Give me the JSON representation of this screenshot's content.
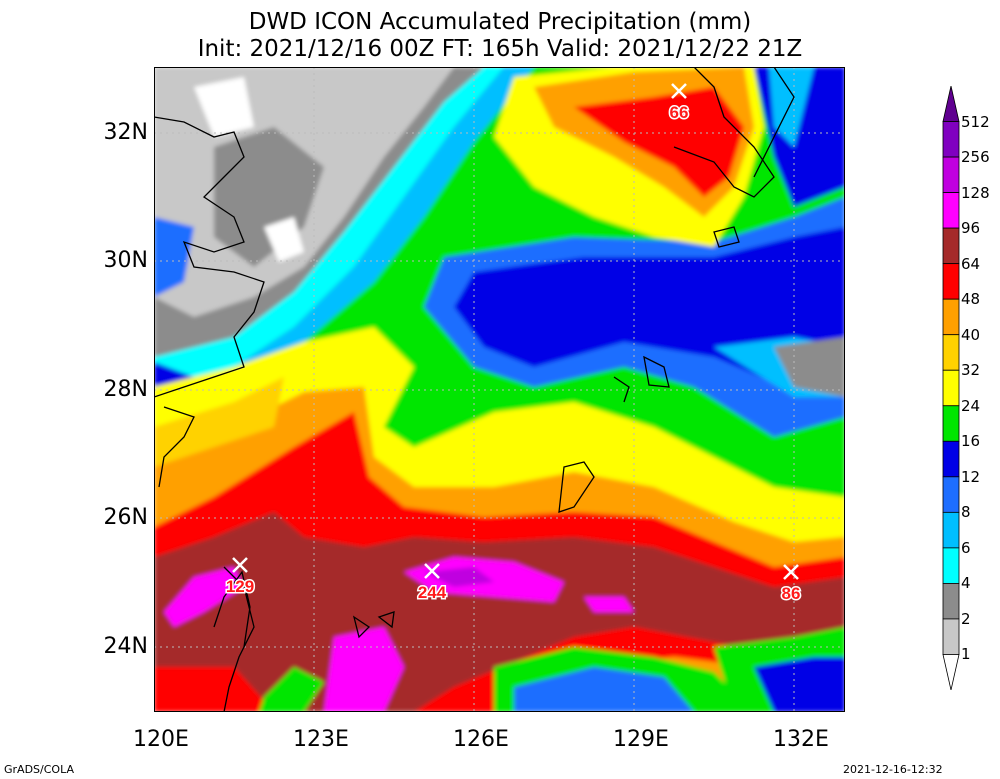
{
  "title_line1": "DWD ICON Accumulated Precipitation (mm)",
  "title_line2": "Init: 2021/12/16 00Z  FT: 165h  Valid: 2021/12/22 21Z",
  "lat_labels": [
    "32N",
    "30N",
    "28N",
    "26N",
    "24N"
  ],
  "lon_labels": [
    "120E",
    "123E",
    "126E",
    "129E",
    "132E"
  ],
  "colorbar": {
    "levels": [
      "1",
      "2",
      "4",
      "6",
      "8",
      "12",
      "16",
      "24",
      "32",
      "40",
      "48",
      "64",
      "96",
      "128",
      "256",
      "512"
    ],
    "colors": [
      "#ffffff",
      "#c8c8c8",
      "#8c8c8c",
      "#00ffff",
      "#00bfff",
      "#1e6eff",
      "#0000e6",
      "#00e600",
      "#ffff00",
      "#ffd200",
      "#ffa000",
      "#ff0000",
      "#a52a2a",
      "#ff00ff",
      "#c000e0",
      "#8000c0",
      "#600090"
    ]
  },
  "maxima": [
    {
      "value": "129"
    },
    {
      "value": "244"
    },
    {
      "value": "86"
    },
    {
      "value": "66"
    }
  ],
  "footer_left": "GrADS/COLA",
  "footer_right": "2021-12-16-12:32"
}
